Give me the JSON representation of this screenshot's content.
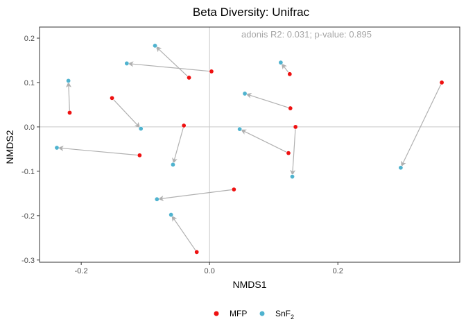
{
  "chart_data": {
    "type": "scatter",
    "title": "Beta Diversity: Unifrac",
    "xlabel": "NMDS1",
    "ylabel": "NMDS2",
    "xlim": [
      -0.265,
      0.39
    ],
    "ylim": [
      -0.305,
      0.225
    ],
    "x_ticks": [
      -0.2,
      0.0,
      0.2
    ],
    "x_tick_labels": [
      "-0.2",
      "0.0",
      "0.2"
    ],
    "y_ticks": [
      -0.3,
      -0.2,
      -0.1,
      0.0,
      0.1,
      0.2
    ],
    "y_tick_labels": [
      "-0.3",
      "-0.2",
      "-0.1",
      "0.0",
      "0.1",
      "0.2"
    ],
    "reference_lines": {
      "x": 0,
      "y": 0
    },
    "grid": false,
    "annotation": "adonis R2: 0.031; p-value: 0.895",
    "legend": {
      "placement": "bottom",
      "entries": [
        {
          "label": "MFP",
          "color": "#ee1111"
        },
        {
          "label_main": "SnF",
          "label_sub": "2",
          "color": "#4fb3cf"
        }
      ]
    },
    "arrow_color": "#b0b0b0",
    "series": [
      {
        "name": "MFP",
        "color": "#ee1111",
        "points": [
          [
            -0.218,
            0.032
          ],
          [
            -0.152,
            0.065
          ],
          [
            -0.032,
            0.111
          ],
          [
            0.003,
            0.125
          ],
          [
            0.125,
            0.119
          ],
          [
            0.126,
            0.042
          ],
          [
            0.134,
            0.0
          ],
          [
            -0.109,
            -0.064
          ],
          [
            -0.04,
            0.003
          ],
          [
            0.123,
            -0.059
          ],
          [
            0.038,
            -0.141
          ],
          [
            -0.02,
            -0.282
          ],
          [
            0.362,
            0.1
          ]
        ]
      },
      {
        "name": "SnF2",
        "color": "#4fb3cf",
        "points": [
          [
            -0.22,
            0.104
          ],
          [
            -0.107,
            -0.004
          ],
          [
            -0.085,
            0.183
          ],
          [
            -0.129,
            0.143
          ],
          [
            0.111,
            0.145
          ],
          [
            0.055,
            0.075
          ],
          [
            0.129,
            -0.112
          ],
          [
            -0.238,
            -0.047
          ],
          [
            -0.057,
            -0.085
          ],
          [
            0.047,
            -0.005
          ],
          [
            -0.082,
            -0.163
          ],
          [
            -0.06,
            -0.198
          ],
          [
            0.298,
            -0.092
          ]
        ]
      }
    ],
    "pairs": [
      [
        0,
        0
      ],
      [
        1,
        1
      ],
      [
        2,
        2
      ],
      [
        3,
        3
      ],
      [
        4,
        4
      ],
      [
        5,
        5
      ],
      [
        6,
        6
      ],
      [
        7,
        7
      ],
      [
        8,
        8
      ],
      [
        9,
        9
      ],
      [
        10,
        10
      ],
      [
        11,
        11
      ],
      [
        12,
        12
      ]
    ]
  }
}
